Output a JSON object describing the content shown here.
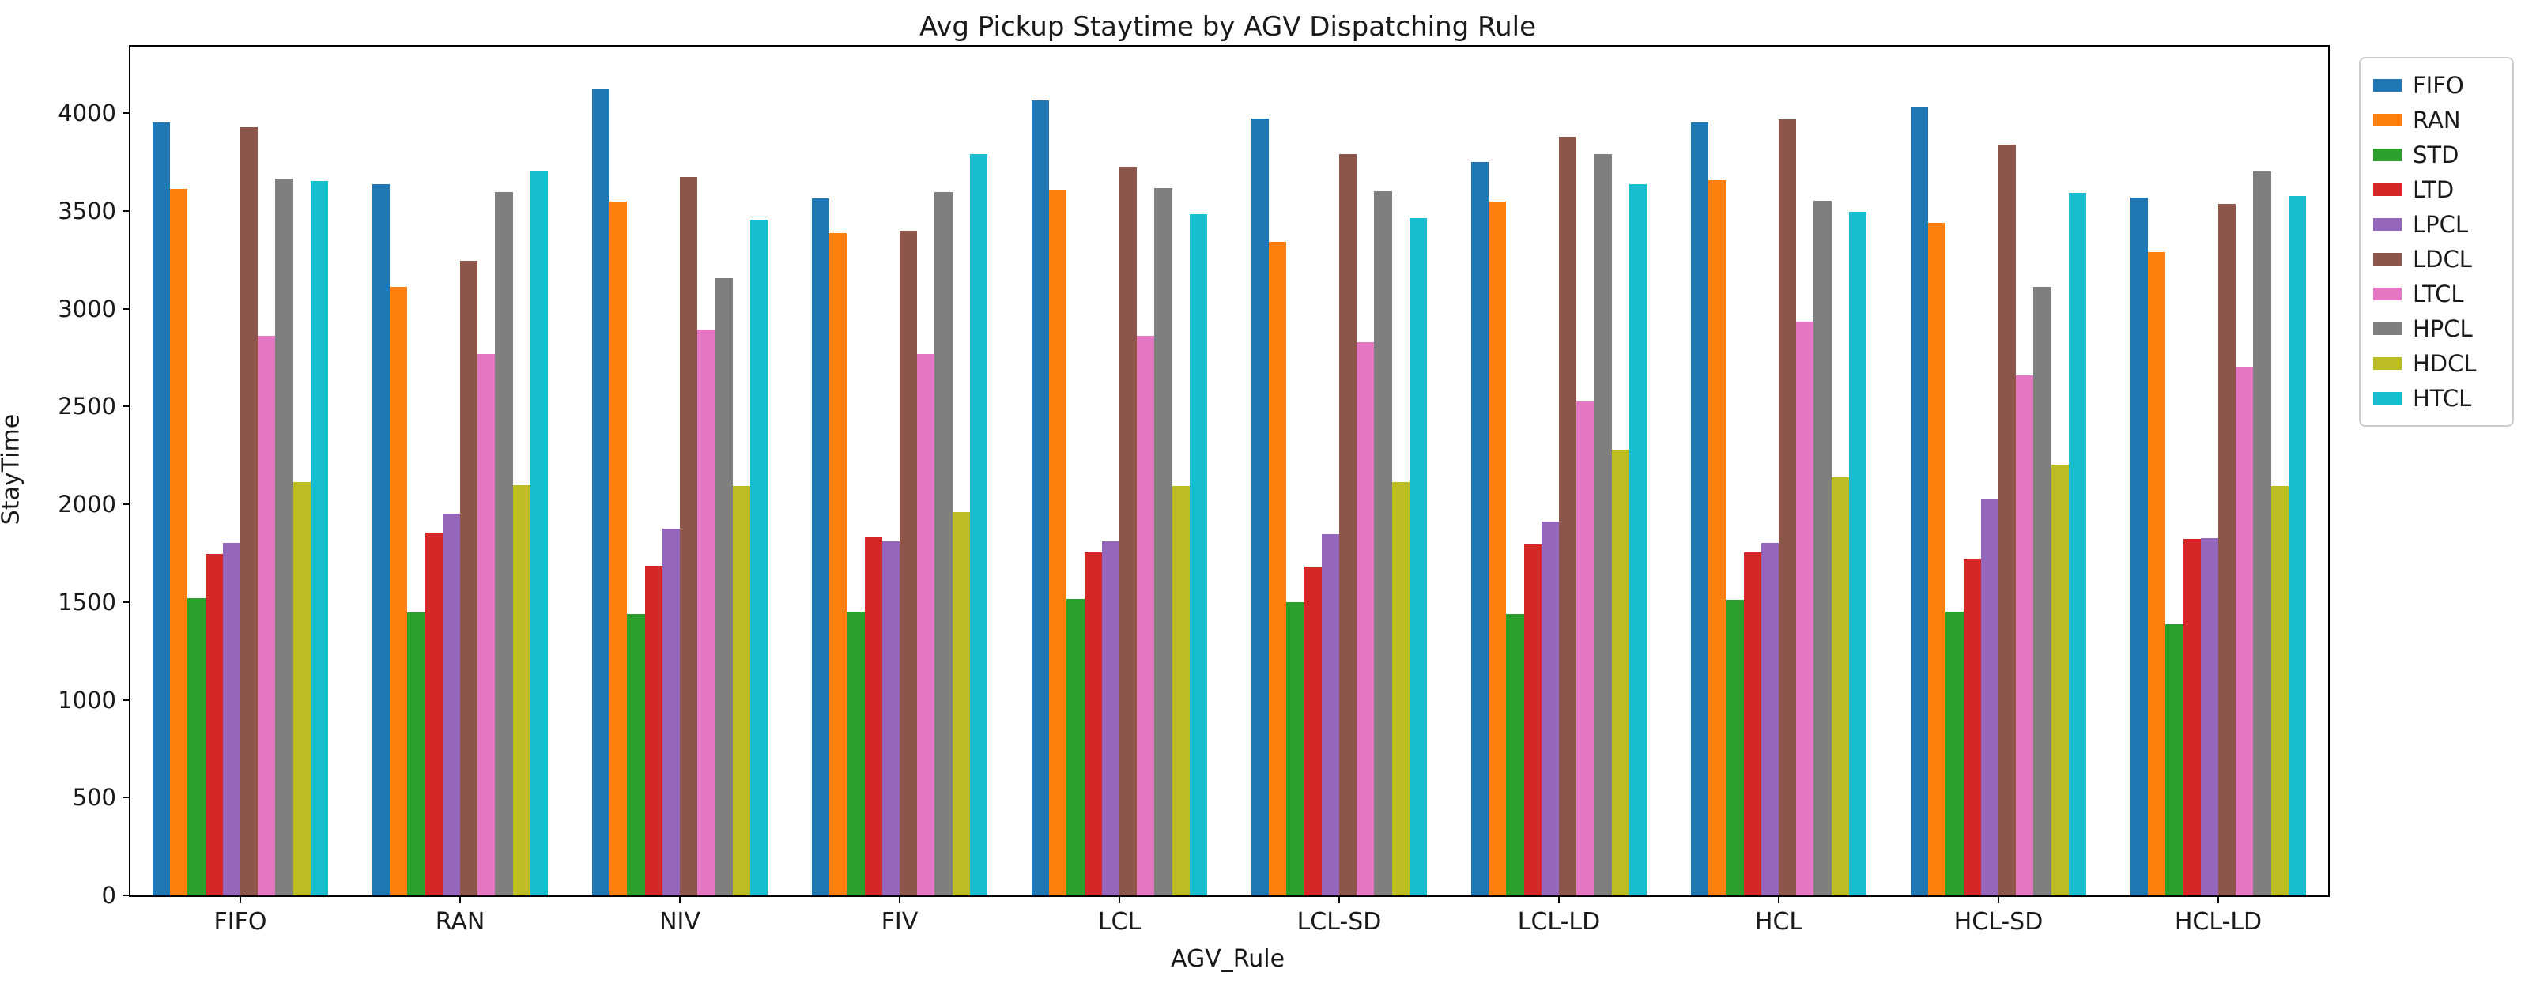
{
  "chart_data": {
    "type": "bar",
    "title": "Avg Pickup Staytime by AGV Dispatching Rule",
    "xlabel": "AGV_Rule",
    "ylabel": "StayTime",
    "categories": [
      "FIFO",
      "RAN",
      "NIV",
      "FIV",
      "LCL",
      "LCL-SD",
      "LCL-LD",
      "HCL",
      "HCL-SD",
      "HCL-LD"
    ],
    "series": [
      {
        "name": "FIFO",
        "color": "#1f77b4",
        "values": [
          3951,
          3635,
          4127,
          3563,
          4067,
          3972,
          3750,
          3953,
          4028,
          3570
        ]
      },
      {
        "name": "RAN",
        "color": "#ff7f0e",
        "values": [
          3612,
          3110,
          3548,
          3385,
          3609,
          3341,
          3547,
          3658,
          3439,
          3290
        ]
      },
      {
        "name": "STD",
        "color": "#2ca02c",
        "values": [
          1520,
          1445,
          1437,
          1450,
          1516,
          1500,
          1437,
          1510,
          1450,
          1385
        ]
      },
      {
        "name": "LTD",
        "color": "#d62728",
        "values": [
          1747,
          1853,
          1684,
          1830,
          1755,
          1680,
          1794,
          1755,
          1722,
          1822
        ]
      },
      {
        "name": "LPCL",
        "color": "#9467bd",
        "values": [
          1802,
          1950,
          1876,
          1810,
          1810,
          1846,
          1912,
          1804,
          2023,
          1828
        ]
      },
      {
        "name": "LDCL",
        "color": "#8c564b",
        "values": [
          3928,
          3245,
          3675,
          3397,
          3724,
          3792,
          3881,
          3969,
          3838,
          3537
        ]
      },
      {
        "name": "LTCL",
        "color": "#e377c2",
        "values": [
          2861,
          2770,
          2893,
          2769,
          2860,
          2828,
          2524,
          2932,
          2661,
          2703
        ]
      },
      {
        "name": "HPCL",
        "color": "#7f7f7f",
        "values": [
          3664,
          3598,
          3155,
          3596,
          3615,
          3600,
          3789,
          3554,
          3112,
          3701
        ]
      },
      {
        "name": "HDCL",
        "color": "#bcbd22",
        "values": [
          2113,
          2098,
          2092,
          1961,
          2092,
          2113,
          2278,
          2138,
          2203,
          2095
        ]
      },
      {
        "name": "HTCL",
        "color": "#17becf",
        "values": [
          3652,
          3705,
          3456,
          3789,
          3482,
          3465,
          3635,
          3495,
          3593,
          3577
        ]
      }
    ],
    "ylim": [
      0,
      4340
    ],
    "yticks": [
      0,
      500,
      1000,
      1500,
      2000,
      2500,
      3000,
      3500,
      4000
    ],
    "legend_position": "upper right, outside axes",
    "grid": false,
    "bar_group_total_slots": 10,
    "group_fill_fraction": 0.8
  },
  "figure": {
    "background": "#ffffff",
    "spine_color": "#000000",
    "text_color": "#1a1a1a",
    "legend_border_color": "#cccccc"
  }
}
